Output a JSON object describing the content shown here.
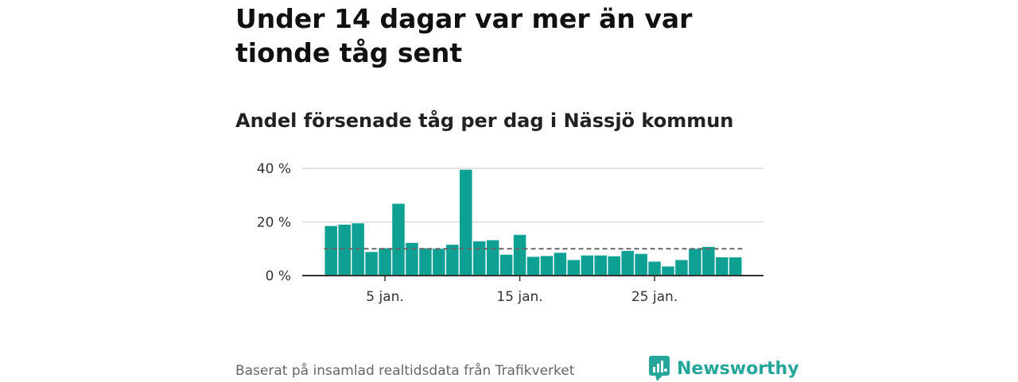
{
  "page": {
    "title": "Under 14 dagar var mer än var tionde tåg sent",
    "subtitle": "Andel försenade tåg per dag i Nässjö kommun",
    "source": "Baserat på insamlad realtidsdata från Trafikverket",
    "brand": "Newsworthy"
  },
  "colors": {
    "bar": "#0fa094",
    "reference_line": "#666666",
    "grid": "#d9d9d9",
    "axis": "#333333",
    "brand": "#26a69a"
  },
  "chart_data": {
    "type": "bar",
    "title": "Andel försenade tåg per dag i Nässjö kommun",
    "xlabel": "",
    "ylabel": "",
    "x": [
      1,
      2,
      3,
      4,
      5,
      6,
      7,
      8,
      9,
      10,
      11,
      12,
      13,
      14,
      15,
      16,
      17,
      18,
      19,
      20,
      21,
      22,
      23,
      24,
      25,
      26,
      27,
      28,
      29,
      30,
      31
    ],
    "values": [
      18.5,
      19,
      19.5,
      8.8,
      10.2,
      26.8,
      12.2,
      10.2,
      10,
      11.5,
      39.5,
      12.8,
      13.2,
      7.8,
      15.2,
      7,
      7.3,
      8.5,
      5.8,
      7.5,
      7.5,
      7.2,
      9.2,
      8.1,
      5.2,
      3.4,
      5.8,
      10,
      10.7,
      6.8,
      6.8
    ],
    "x_ticks": [
      {
        "value": 5,
        "label": "5 jan."
      },
      {
        "value": 15,
        "label": "15 jan."
      },
      {
        "value": 25,
        "label": "25 jan."
      }
    ],
    "y_ticks": [
      {
        "value": 0,
        "label": "0 %"
      },
      {
        "value": 20,
        "label": "20 %"
      },
      {
        "value": 40,
        "label": "40 %"
      }
    ],
    "ylim": [
      0,
      40
    ],
    "reference_line": 10,
    "grid": true,
    "legend": "none"
  }
}
